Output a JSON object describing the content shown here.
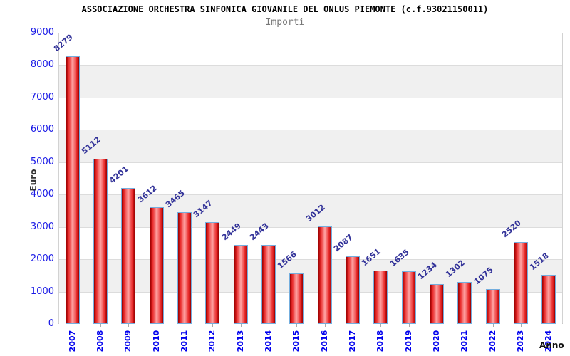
{
  "chart_data": {
    "type": "bar",
    "title": "ASSOCIAZIONE ORCHESTRA SINFONICA GIOVANILE DEL ONLUS PIEMONTE (c.f.93021150011)",
    "subtitle": "Importi",
    "xlabel": "Anno",
    "ylabel": "Euro",
    "categories": [
      "2007",
      "2008",
      "2009",
      "2010",
      "2011",
      "2012",
      "2013",
      "2014",
      "2015",
      "2016",
      "2017",
      "2018",
      "2019",
      "2020",
      "2021",
      "2022",
      "2023",
      "2024"
    ],
    "values": [
      8279,
      5112,
      4201,
      3612,
      3465,
      3147,
      2449,
      2443,
      1566,
      3012,
      2087,
      1651,
      1635,
      1234,
      1302,
      1075,
      2520,
      1518
    ],
    "ylim": [
      0,
      9000
    ],
    "ytick_step": 1000,
    "grid": true,
    "legend": "none",
    "colors": {
      "bar_edge_dark": "#990000",
      "bar_mid": "#e82828",
      "bar_highlight": "#ffa6a6",
      "bar_border": "#74aede",
      "band_alt": "#f0f0f0",
      "band_main": "#ffffff",
      "gridline": "#dcdcdc",
      "y_tick_text": "#1a1ae6",
      "x_tick_text": "#0000ee",
      "value_label_text": "#333399",
      "title_text": "#000000",
      "subtitle_text": "#777777",
      "axis_title_text": "#333333"
    }
  }
}
